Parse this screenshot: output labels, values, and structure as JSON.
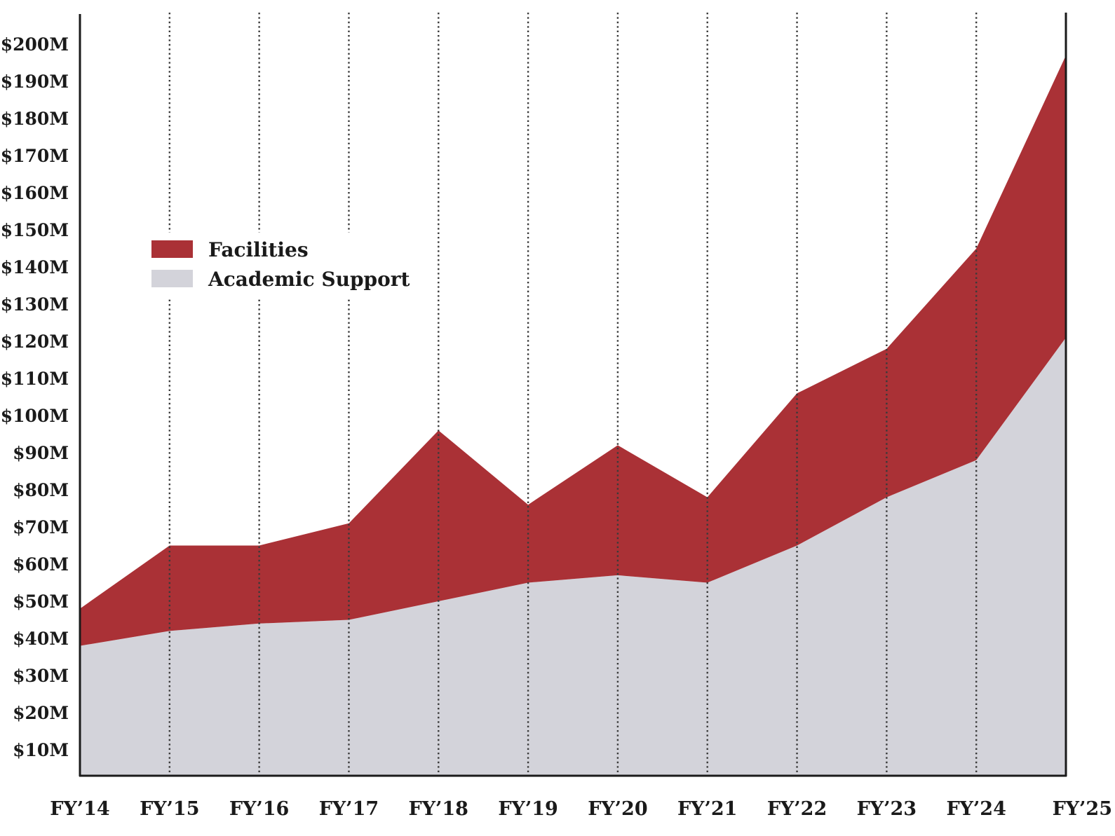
{
  "chart_data": {
    "type": "area",
    "stacked": true,
    "categories": [
      "FY’14",
      "FY’15",
      "FY’16",
      "FY’17",
      "FY’18",
      "FY’19",
      "FY’20",
      "FY’21",
      "FY’22",
      "FY’23",
      "FY’24",
      "FY’25"
    ],
    "series": [
      {
        "name": "Academic Support",
        "color": "#d3d3da",
        "values": [
          38,
          42,
          44,
          45,
          50,
          55,
          57,
          55,
          65,
          78,
          88,
          121
        ]
      },
      {
        "name": "Facilities",
        "color": "#aa3136",
        "values": [
          10,
          23,
          21,
          26,
          46,
          21,
          35,
          23,
          41,
          40,
          57,
          76
        ]
      }
    ],
    "stack_totals": [
      48,
      65,
      65,
      71,
      96,
      76,
      92,
      78,
      106,
      118,
      145,
      197
    ],
    "y_ticks": [
      "$10M",
      "$20M",
      "$30M",
      "$40M",
      "$50M",
      "$60M",
      "$70M",
      "$80M",
      "$90M",
      "$100M",
      "$110M",
      "$120M",
      "$130M",
      "$140M",
      "$150M",
      "$160M",
      "$170M",
      "$180M",
      "$190M",
      "$200M"
    ],
    "ylim": [
      3,
      204
    ],
    "grid": "vertical dotted lines at each category",
    "legend": {
      "position": "upper-left",
      "items": [
        {
          "label": "Facilities",
          "color": "#aa3136"
        },
        {
          "label": "Academic Support",
          "color": "#d3d3da"
        }
      ]
    }
  }
}
